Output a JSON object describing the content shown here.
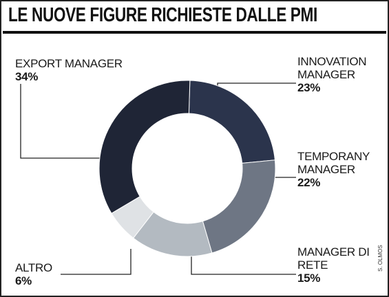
{
  "chart_data": {
    "type": "donut",
    "title": "LE NUOVE FIGURE RICHIESTE DALLE PMI",
    "categories": [
      "INNOVATION MANAGER",
      "TEMPORANY MANAGER",
      "MANAGER DI RETE",
      "ALTRO",
      "EXPORT MANAGER"
    ],
    "values": [
      23,
      22,
      15,
      6,
      34
    ],
    "value_labels": [
      "23%",
      "22%",
      "15%",
      "6%",
      "34%"
    ],
    "colors": [
      "#2b344c",
      "#6e7684",
      "#b3bac1",
      "#dfe2e5",
      "#1f2536"
    ],
    "credit": "S. OLMOS"
  }
}
